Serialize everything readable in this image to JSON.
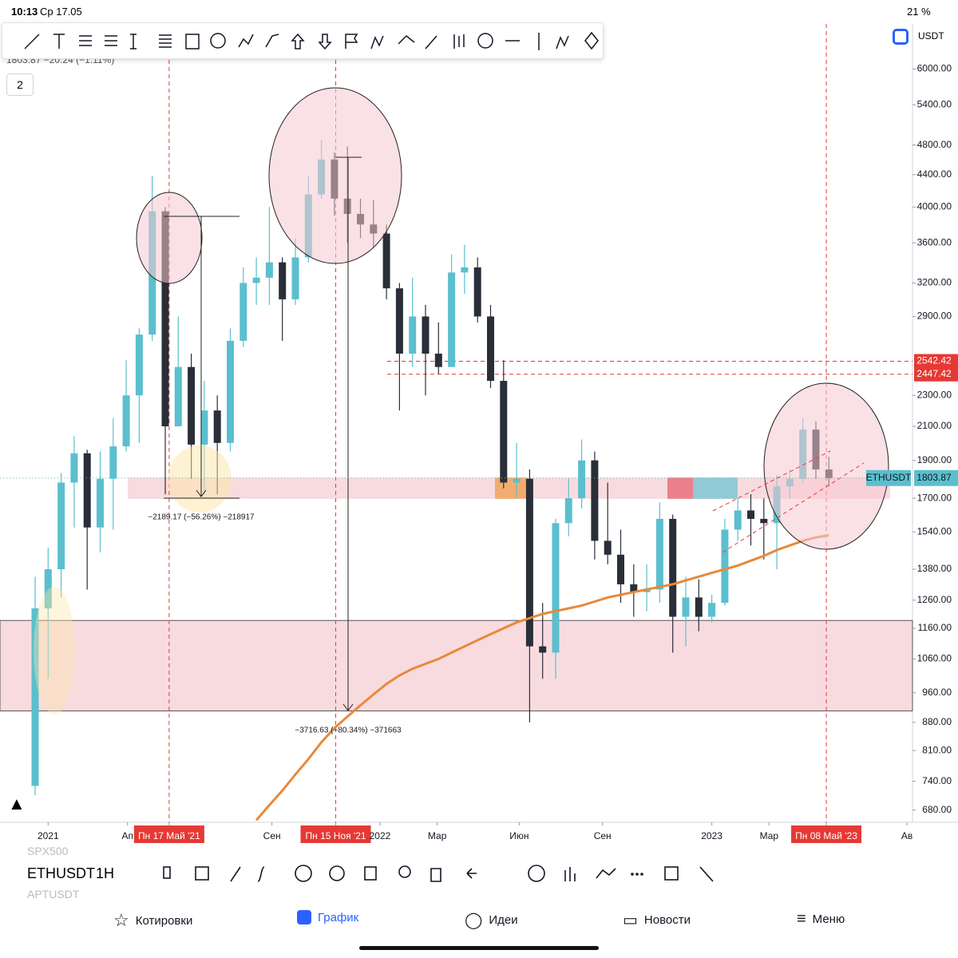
{
  "status_bar": {
    "time": "10:13",
    "date": "Ср 17.05",
    "battery": "21 %"
  },
  "header_quote": "1803.87 −20.24 (−1.11%)",
  "layout_count": "2",
  "currency": "USDT",
  "chart_data": {
    "type": "candlestick",
    "up_color": "#5bbfce",
    "down_color": "#2a2e39",
    "log_scale": true,
    "ylim": [
      656,
      6850
    ],
    "yticks": [
      {
        "value": 6000,
        "label": "6000.00"
      },
      {
        "value": 5400,
        "label": "5400.00"
      },
      {
        "value": 4800,
        "label": "4800.00"
      },
      {
        "value": 4400,
        "label": "4400.00"
      },
      {
        "value": 4000,
        "label": "4000.00"
      },
      {
        "value": 3600,
        "label": "3600.00"
      },
      {
        "value": 3200,
        "label": "3200.00"
      },
      {
        "value": 2900,
        "label": "2900.00"
      },
      {
        "value": 2300,
        "label": "2300.00"
      },
      {
        "value": 2100,
        "label": "2100.00"
      },
      {
        "value": 1900,
        "label": "1900.00"
      },
      {
        "value": 1700,
        "label": "1700.00"
      },
      {
        "value": 1540,
        "label": "1540.00"
      },
      {
        "value": 1380,
        "label": "1380.00"
      },
      {
        "value": 1260,
        "label": "1260.00"
      },
      {
        "value": 1160,
        "label": "1160.00"
      },
      {
        "value": 1060,
        "label": "1060.00"
      },
      {
        "value": 960,
        "label": "960.00"
      },
      {
        "value": 880,
        "label": "880.00"
      },
      {
        "value": 810,
        "label": "810.00"
      },
      {
        "value": 740,
        "label": "740.00"
      },
      {
        "value": 680,
        "label": "680.00"
      }
    ],
    "xticks": [
      {
        "value": 1,
        "label": "2021"
      },
      {
        "value": 7.1,
        "label": "Ап"
      },
      {
        "value": 10.3,
        "label": "Пн 17 Май '21",
        "highlight": true
      },
      {
        "value": 18.2,
        "label": "Сен"
      },
      {
        "value": 23.1,
        "label": "Пн 15 Ноя '21",
        "highlight": true
      },
      {
        "value": 26.5,
        "label": "2022"
      },
      {
        "value": 30.9,
        "label": "Мар"
      },
      {
        "value": 37.2,
        "label": "Июн"
      },
      {
        "value": 43.6,
        "label": "Сен"
      },
      {
        "value": 52,
        "label": "2023"
      },
      {
        "value": 56.4,
        "label": "Мар"
      },
      {
        "value": 60.8,
        "label": "Пн 08 Май '23",
        "highlight": true
      },
      {
        "value": 67,
        "label": "Ав"
      }
    ],
    "candles": [
      [
        730,
        1350,
        710,
        1230
      ],
      [
        1230,
        1470,
        1000,
        1380
      ],
      [
        1380,
        1830,
        1270,
        1780
      ],
      [
        1780,
        2040,
        1560,
        1940
      ],
      [
        1940,
        1960,
        1300,
        1560
      ],
      [
        1560,
        1950,
        1450,
        1800
      ],
      [
        1800,
        2150,
        1550,
        1980
      ],
      [
        1980,
        2550,
        1950,
        2300
      ],
      [
        2300,
        2800,
        2000,
        2750
      ],
      [
        2750,
        4380,
        2700,
        3950
      ],
      [
        3950,
        4000,
        1720,
        2100
      ],
      [
        2100,
        2900,
        2100,
        2500
      ],
      [
        2500,
        2600,
        1800,
        1990
      ],
      [
        1990,
        2400,
        1720,
        2200
      ],
      [
        2200,
        2300,
        1720,
        2000
      ],
      [
        2000,
        2800,
        1950,
        2700
      ],
      [
        2700,
        3350,
        2650,
        3200
      ],
      [
        3200,
        3450,
        3000,
        3250
      ],
      [
        3250,
        4000,
        3000,
        3400
      ],
      [
        3400,
        3450,
        2700,
        3050
      ],
      [
        3050,
        3650,
        3000,
        3450
      ],
      [
        3450,
        4380,
        3400,
        4150
      ],
      [
        4150,
        4870,
        4100,
        4600
      ],
      [
        4600,
        4700,
        3900,
        4100
      ],
      [
        4100,
        4780,
        3600,
        3920
      ],
      [
        3920,
        4100,
        3650,
        3800
      ],
      [
        3800,
        4080,
        3550,
        3700
      ],
      [
        3700,
        3800,
        3050,
        3150
      ],
      [
        3150,
        3200,
        2200,
        2600
      ],
      [
        2600,
        3250,
        2500,
        2900
      ],
      [
        2900,
        3000,
        2300,
        2600
      ],
      [
        2600,
        2850,
        2450,
        2500
      ],
      [
        2500,
        3480,
        2500,
        3300
      ],
      [
        3300,
        3580,
        3100,
        3350
      ],
      [
        3350,
        3450,
        2850,
        2900
      ],
      [
        2900,
        3000,
        2350,
        2400
      ],
      [
        2400,
        2550,
        1750,
        1780
      ],
      [
        1780,
        2000,
        1700,
        1800
      ],
      [
        1800,
        1850,
        880,
        1100
      ],
      [
        1100,
        1250,
        1000,
        1080
      ],
      [
        1080,
        1600,
        1000,
        1580
      ],
      [
        1580,
        1800,
        1520,
        1700
      ],
      [
        1700,
        2020,
        1650,
        1900
      ],
      [
        1900,
        1950,
        1420,
        1500
      ],
      [
        1500,
        1780,
        1400,
        1440
      ],
      [
        1440,
        1550,
        1250,
        1320
      ],
      [
        1320,
        1400,
        1200,
        1290
      ],
      [
        1290,
        1400,
        1220,
        1300
      ],
      [
        1300,
        1680,
        1250,
        1600
      ],
      [
        1600,
        1620,
        1080,
        1200
      ],
      [
        1200,
        1350,
        1100,
        1270
      ],
      [
        1270,
        1340,
        1150,
        1200
      ],
      [
        1200,
        1280,
        1180,
        1250
      ],
      [
        1250,
        1600,
        1240,
        1550
      ],
      [
        1550,
        1700,
        1500,
        1640
      ],
      [
        1640,
        1720,
        1480,
        1600
      ],
      [
        1600,
        1700,
        1420,
        1580
      ],
      [
        1580,
        1820,
        1380,
        1760
      ],
      [
        1760,
        1850,
        1700,
        1800
      ],
      [
        1800,
        2150,
        1780,
        2080
      ],
      [
        2080,
        2130,
        1800,
        1850
      ],
      [
        1850,
        1920,
        1760,
        1804
      ]
    ],
    "ema": {
      "color": "#e8893a",
      "values": [
        null,
        null,
        null,
        null,
        null,
        null,
        null,
        null,
        null,
        null,
        null,
        null,
        null,
        null,
        null,
        null,
        null,
        660,
        690,
        720,
        755,
        790,
        830,
        865,
        895,
        925,
        955,
        985,
        1010,
        1030,
        1045,
        1060,
        1080,
        1100,
        1120,
        1140,
        1160,
        1180,
        1195,
        1210,
        1220,
        1230,
        1240,
        1255,
        1270,
        1280,
        1290,
        1300,
        1310,
        1320,
        1335,
        1350,
        1365,
        1380,
        1395,
        1415,
        1435,
        1460,
        1480,
        1500,
        1515,
        1525
      ]
    },
    "zones": [
      {
        "low": 1697,
        "high": 1806
      },
      {
        "low": 910,
        "high": 1187
      }
    ],
    "levels": [
      2542.42,
      2447.42
    ],
    "last": {
      "symbol": "ETHUSDT",
      "value": 1803.87
    },
    "annotations": [
      "−2189.17 (−56.26%) −218917",
      "−3716.63 (−80.34%) −371663"
    ]
  },
  "bottom_bar": {
    "symbol": "ETHUSDT",
    "interval": "1H",
    "prev": "SPX500",
    "next": "APTUSDT"
  },
  "nav": [
    "Котировки",
    "График",
    "Идеи",
    "Новости",
    "Меню"
  ]
}
